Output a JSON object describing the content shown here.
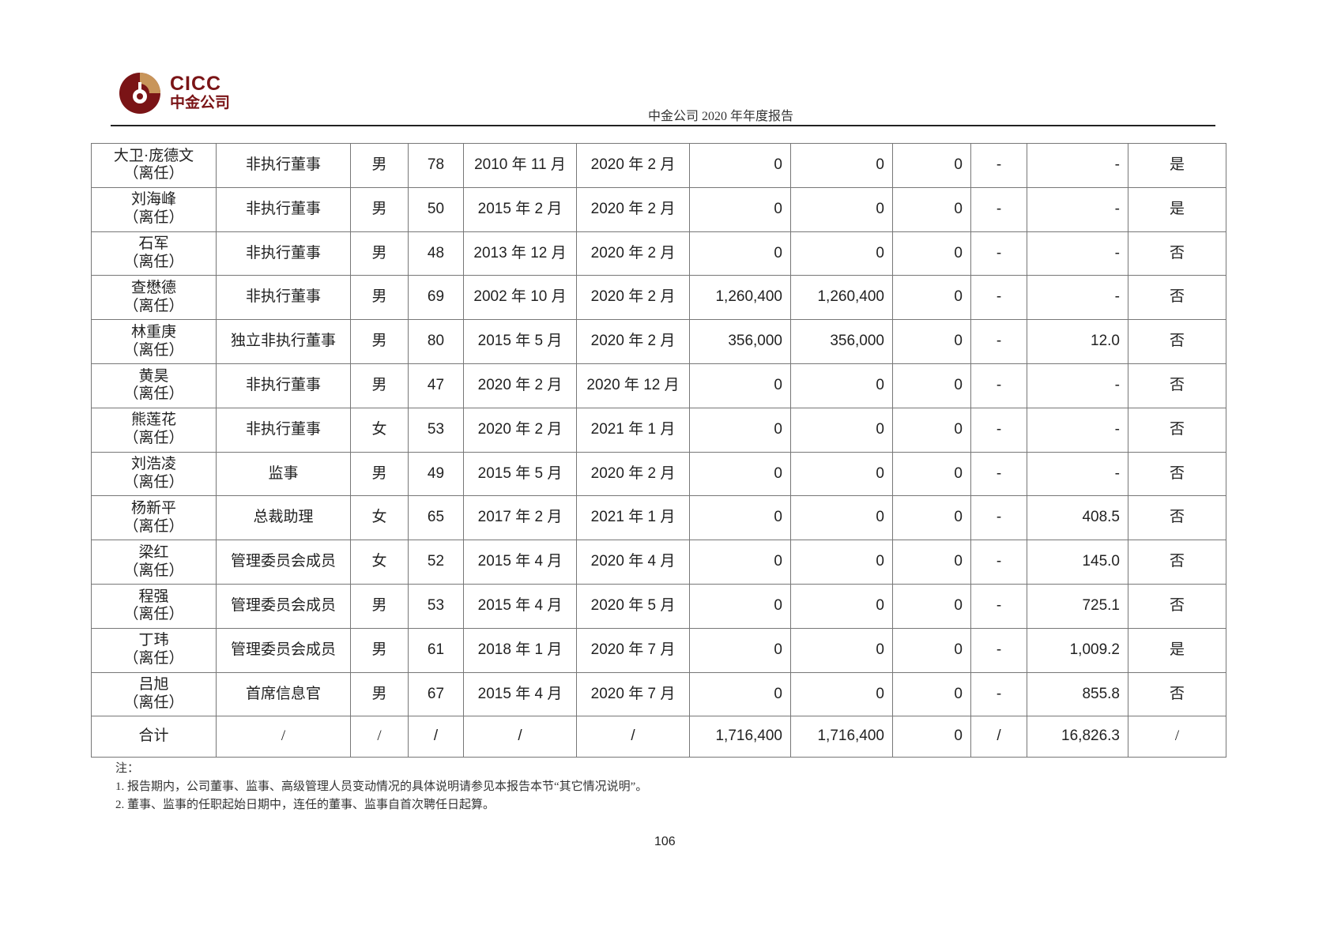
{
  "header": {
    "logo_en": "CICC",
    "logo_cn": "中金公司",
    "title": "中金公司 2020 年年度报告",
    "brand_colors": {
      "dark_red": "#7a1416",
      "gold": "#c8955a"
    }
  },
  "table": {
    "rows": [
      [
        "大卫·庞德文",
        "（离任）",
        "非执行董事",
        "男",
        "78",
        "2010 年 11 月",
        "2020 年 2 月",
        "0",
        "0",
        "0",
        "-",
        "-",
        "是"
      ],
      [
        "刘海峰",
        "（离任）",
        "非执行董事",
        "男",
        "50",
        "2015 年 2 月",
        "2020 年 2 月",
        "0",
        "0",
        "0",
        "-",
        "-",
        "是"
      ],
      [
        "石军",
        "（离任）",
        "非执行董事",
        "男",
        "48",
        "2013 年 12 月",
        "2020 年 2 月",
        "0",
        "0",
        "0",
        "-",
        "-",
        "否"
      ],
      [
        "查懋德",
        "（离任）",
        "非执行董事",
        "男",
        "69",
        "2002 年 10 月",
        "2020 年 2 月",
        "1,260,400",
        "1,260,400",
        "0",
        "-",
        "-",
        "否"
      ],
      [
        "林重庚",
        "（离任）",
        "独立非执行董事",
        "男",
        "80",
        "2015 年 5 月",
        "2020 年 2 月",
        "356,000",
        "356,000",
        "0",
        "-",
        "12.0",
        "否"
      ],
      [
        "黄昊",
        "（离任）",
        "非执行董事",
        "男",
        "47",
        "2020 年 2 月",
        "2020 年 12 月",
        "0",
        "0",
        "0",
        "-",
        "-",
        "否"
      ],
      [
        "熊莲花",
        "（离任）",
        "非执行董事",
        "女",
        "53",
        "2020 年 2 月",
        "2021 年 1 月",
        "0",
        "0",
        "0",
        "-",
        "-",
        "否"
      ],
      [
        "刘浩凌",
        "（离任）",
        "监事",
        "男",
        "49",
        "2015 年 5 月",
        "2020 年 2 月",
        "0",
        "0",
        "0",
        "-",
        "-",
        "否"
      ],
      [
        "杨新平",
        "（离任）",
        "总裁助理",
        "女",
        "65",
        "2017 年 2 月",
        "2021 年 1 月",
        "0",
        "0",
        "0",
        "-",
        "408.5",
        "否"
      ],
      [
        "梁红",
        "（离任）",
        "管理委员会成员",
        "女",
        "52",
        "2015 年 4 月",
        "2020 年 4 月",
        "0",
        "0",
        "0",
        "-",
        "145.0",
        "否"
      ],
      [
        "程强",
        "（离任）",
        "管理委员会成员",
        "男",
        "53",
        "2015 年 4 月",
        "2020 年 5 月",
        "0",
        "0",
        "0",
        "-",
        "725.1",
        "否"
      ],
      [
        "丁玮",
        "（离任）",
        "管理委员会成员",
        "男",
        "61",
        "2018 年 1 月",
        "2020 年 7 月",
        "0",
        "0",
        "0",
        "-",
        "1,009.2",
        "是"
      ],
      [
        "吕旭",
        "（离任）",
        "首席信息官",
        "男",
        "67",
        "2015 年 4 月",
        "2020 年 7 月",
        "0",
        "0",
        "0",
        "-",
        "855.8",
        "否"
      ]
    ],
    "total": [
      "合计",
      "/",
      "/",
      "/",
      "/",
      "/",
      "1,716,400",
      "1,716,400",
      "0",
      "/",
      "16,826.3",
      "/"
    ]
  },
  "notes": {
    "heading": "注：",
    "items": [
      "1. 报告期内，公司董事、监事、高级管理人员变动情况的具体说明请参见本报告本节“其它情况说明”。",
      "2. 董事、监事的任职起始日期中，连任的董事、监事自首次聘任日起算。"
    ]
  },
  "page_number": "106"
}
